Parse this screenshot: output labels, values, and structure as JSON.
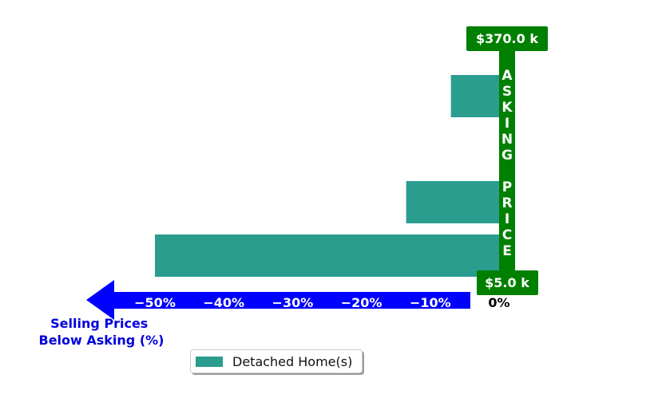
{
  "chart_data": {
    "type": "bar",
    "orientation": "horizontal",
    "series": [
      {
        "name": "Detached Home(s)",
        "values": [
          -7,
          -13.5,
          -50
        ],
        "color": "#2a9d8f"
      }
    ],
    "xlim": [
      -50,
      0
    ],
    "x_ticks": [
      {
        "value": -50,
        "label": "−50%"
      },
      {
        "value": -40,
        "label": "−40%"
      },
      {
        "value": -30,
        "label": "−30%"
      },
      {
        "value": -20,
        "label": "−20%"
      },
      {
        "value": -10,
        "label": "−10%"
      },
      {
        "value": 0,
        "label": "0%"
      }
    ],
    "xlabel": "Selling Prices\nBelow Asking (%)",
    "y_axis_label": "ASKING PRICE",
    "y_top_label": "$370.0 k",
    "y_bottom_label": "$5.0 k",
    "grid": false,
    "legend_position": "bottom",
    "colors": {
      "bar": "#2a9d8f",
      "axis_banner": "#008000",
      "arrow": "#0000ff",
      "xlabel": "#0000dd"
    }
  },
  "legend": {
    "label": "Detached Home(s)"
  }
}
